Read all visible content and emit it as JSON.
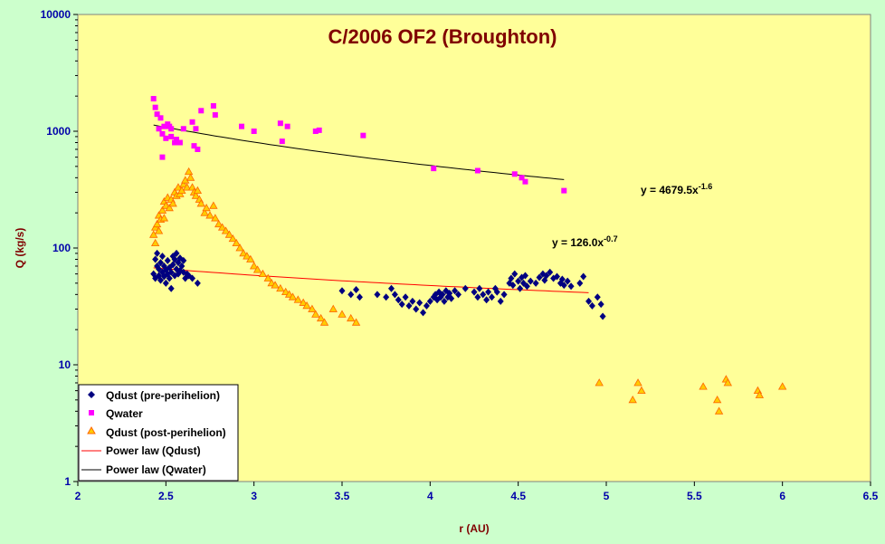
{
  "chart_data": {
    "type": "scatter",
    "title": "C/2006 OF2 (Broughton)",
    "xlabel": "r (AU)",
    "ylabel": "Q (kg/s)",
    "xlim": [
      2,
      6.5
    ],
    "ylim": [
      1,
      10000
    ],
    "yscale": "log",
    "x_ticks": [
      "2",
      "2.5",
      "3",
      "3.5",
      "4",
      "4.5",
      "5",
      "5.5",
      "6",
      "6.5"
    ],
    "y_ticks": [
      "1",
      "10",
      "100",
      "1000",
      "10000"
    ],
    "grid": false,
    "legend_position": "bottom-left",
    "colors": {
      "plot_bg": "#ffff99",
      "chart_bg": "#ccffcc",
      "qdust_pre": "#000080",
      "qwater": "#ff00ff",
      "qdust_post_fill": "#ffcc00",
      "qdust_post_edge": "#ff6600",
      "power_qdust": "#ff0000",
      "power_qwater": "#000000"
    },
    "annotations": [
      {
        "id": "eq_water",
        "prefix": "y = 4679.5x",
        "exponent": "-1.6",
        "x": 4.8,
        "y": 300
      },
      {
        "id": "eq_dust",
        "prefix": "y = 126.0x",
        "exponent": "-0.7",
        "x": 4.75,
        "y": 68
      }
    ],
    "series": [
      {
        "name": "Qdust (pre-perihelion)",
        "marker": "diamond",
        "points": [
          [
            2.43,
            60
          ],
          [
            2.44,
            80
          ],
          [
            2.44,
            55
          ],
          [
            2.45,
            70
          ],
          [
            2.45,
            90
          ],
          [
            2.46,
            58
          ],
          [
            2.46,
            66
          ],
          [
            2.47,
            75
          ],
          [
            2.47,
            53
          ],
          [
            2.48,
            62
          ],
          [
            2.48,
            85
          ],
          [
            2.49,
            57
          ],
          [
            2.49,
            70
          ],
          [
            2.5,
            50
          ],
          [
            2.5,
            65
          ],
          [
            2.51,
            60
          ],
          [
            2.51,
            78
          ],
          [
            2.52,
            55
          ],
          [
            2.52,
            68
          ],
          [
            2.53,
            45
          ],
          [
            2.53,
            62
          ],
          [
            2.54,
            85
          ],
          [
            2.54,
            72
          ],
          [
            2.55,
            80
          ],
          [
            2.55,
            58
          ],
          [
            2.56,
            66
          ],
          [
            2.56,
            90
          ],
          [
            2.57,
            75
          ],
          [
            2.57,
            60
          ],
          [
            2.58,
            82
          ],
          [
            2.58,
            64
          ],
          [
            2.59,
            70
          ],
          [
            2.6,
            78
          ],
          [
            2.6,
            62
          ],
          [
            2.61,
            55
          ],
          [
            2.62,
            60
          ],
          [
            2.63,
            58
          ],
          [
            2.65,
            55
          ],
          [
            2.68,
            50
          ],
          [
            3.5,
            43
          ],
          [
            3.55,
            40
          ],
          [
            3.58,
            44
          ],
          [
            3.6,
            38
          ],
          [
            3.7,
            40
          ],
          [
            3.75,
            38
          ],
          [
            3.78,
            45
          ],
          [
            3.8,
            40
          ],
          [
            3.82,
            36
          ],
          [
            3.84,
            33
          ],
          [
            3.86,
            38
          ],
          [
            3.88,
            32
          ],
          [
            3.9,
            35
          ],
          [
            3.92,
            30
          ],
          [
            3.94,
            34
          ],
          [
            3.96,
            28
          ],
          [
            3.98,
            32
          ],
          [
            4.0,
            35
          ],
          [
            4.02,
            38
          ],
          [
            4.03,
            40
          ],
          [
            4.04,
            36
          ],
          [
            4.05,
            42
          ],
          [
            4.06,
            38
          ],
          [
            4.07,
            40
          ],
          [
            4.08,
            35
          ],
          [
            4.09,
            43
          ],
          [
            4.1,
            38
          ],
          [
            4.11,
            41
          ],
          [
            4.12,
            37
          ],
          [
            4.14,
            43
          ],
          [
            4.16,
            40
          ],
          [
            4.2,
            45
          ],
          [
            4.25,
            42
          ],
          [
            4.27,
            38
          ],
          [
            4.28,
            45
          ],
          [
            4.3,
            40
          ],
          [
            4.32,
            36
          ],
          [
            4.33,
            42
          ],
          [
            4.35,
            38
          ],
          [
            4.37,
            45
          ],
          [
            4.38,
            42
          ],
          [
            4.4,
            35
          ],
          [
            4.42,
            40
          ],
          [
            4.45,
            50
          ],
          [
            4.46,
            55
          ],
          [
            4.47,
            48
          ],
          [
            4.48,
            60
          ],
          [
            4.5,
            52
          ],
          [
            4.51,
            45
          ],
          [
            4.52,
            56
          ],
          [
            4.53,
            50
          ],
          [
            4.54,
            58
          ],
          [
            4.55,
            47
          ],
          [
            4.57,
            52
          ],
          [
            4.6,
            50
          ],
          [
            4.62,
            56
          ],
          [
            4.64,
            60
          ],
          [
            4.65,
            53
          ],
          [
            4.66,
            58
          ],
          [
            4.68,
            62
          ],
          [
            4.7,
            55
          ],
          [
            4.72,
            57
          ],
          [
            4.74,
            50
          ],
          [
            4.75,
            54
          ],
          [
            4.76,
            48
          ],
          [
            4.78,
            52
          ],
          [
            4.8,
            47
          ],
          [
            4.85,
            50
          ],
          [
            4.87,
            57
          ],
          [
            4.9,
            35
          ],
          [
            4.92,
            32
          ],
          [
            4.95,
            38
          ],
          [
            4.97,
            33
          ],
          [
            4.98,
            26
          ]
        ]
      },
      {
        "name": "Qwater",
        "marker": "square",
        "points": [
          [
            2.43,
            1900
          ],
          [
            2.44,
            1600
          ],
          [
            2.45,
            1400
          ],
          [
            2.46,
            1050
          ],
          [
            2.47,
            1300
          ],
          [
            2.48,
            950
          ],
          [
            2.49,
            1100
          ],
          [
            2.48,
            600
          ],
          [
            2.5,
            870
          ],
          [
            2.51,
            1150
          ],
          [
            2.52,
            1100
          ],
          [
            2.53,
            1050
          ],
          [
            2.53,
            900
          ],
          [
            2.55,
            800
          ],
          [
            2.56,
            850
          ],
          [
            2.58,
            800
          ],
          [
            2.6,
            1050
          ],
          [
            2.65,
            1200
          ],
          [
            2.66,
            750
          ],
          [
            2.67,
            1050
          ],
          [
            2.68,
            700
          ],
          [
            2.7,
            1500
          ],
          [
            2.77,
            1650
          ],
          [
            2.78,
            1380
          ],
          [
            2.93,
            1100
          ],
          [
            3.0,
            1000
          ],
          [
            3.15,
            1170
          ],
          [
            3.16,
            820
          ],
          [
            3.19,
            1100
          ],
          [
            3.35,
            1000
          ],
          [
            3.37,
            1020
          ],
          [
            3.62,
            920
          ],
          [
            4.02,
            480
          ],
          [
            4.27,
            460
          ],
          [
            4.48,
            430
          ],
          [
            4.52,
            400
          ],
          [
            4.54,
            370
          ],
          [
            4.76,
            310
          ]
        ]
      },
      {
        "name": "Qdust (post-perihelion)",
        "marker": "triangle",
        "points": [
          [
            2.43,
            130
          ],
          [
            2.44,
            150
          ],
          [
            2.44,
            110
          ],
          [
            2.45,
            160
          ],
          [
            2.46,
            190
          ],
          [
            2.46,
            140
          ],
          [
            2.47,
            175
          ],
          [
            2.48,
            210
          ],
          [
            2.49,
            250
          ],
          [
            2.49,
            180
          ],
          [
            2.5,
            230
          ],
          [
            2.51,
            270
          ],
          [
            2.52,
            220
          ],
          [
            2.53,
            260
          ],
          [
            2.54,
            240
          ],
          [
            2.55,
            300
          ],
          [
            2.56,
            280
          ],
          [
            2.57,
            330
          ],
          [
            2.58,
            290
          ],
          [
            2.59,
            310
          ],
          [
            2.6,
            350
          ],
          [
            2.61,
            380
          ],
          [
            2.62,
            330
          ],
          [
            2.63,
            450
          ],
          [
            2.64,
            400
          ],
          [
            2.65,
            330
          ],
          [
            2.66,
            300
          ],
          [
            2.67,
            280
          ],
          [
            2.68,
            310
          ],
          [
            2.69,
            260
          ],
          [
            2.7,
            240
          ],
          [
            2.72,
            200
          ],
          [
            2.73,
            220
          ],
          [
            2.75,
            190
          ],
          [
            2.77,
            230
          ],
          [
            2.78,
            180
          ],
          [
            2.8,
            160
          ],
          [
            2.82,
            150
          ],
          [
            2.84,
            140
          ],
          [
            2.86,
            130
          ],
          [
            2.88,
            120
          ],
          [
            2.9,
            110
          ],
          [
            2.92,
            100
          ],
          [
            2.94,
            90
          ],
          [
            2.96,
            85
          ],
          [
            2.98,
            80
          ],
          [
            3.0,
            70
          ],
          [
            3.02,
            65
          ],
          [
            3.05,
            60
          ],
          [
            3.08,
            55
          ],
          [
            3.1,
            50
          ],
          [
            3.12,
            48
          ],
          [
            3.15,
            45
          ],
          [
            3.18,
            42
          ],
          [
            3.2,
            40
          ],
          [
            3.22,
            38
          ],
          [
            3.25,
            36
          ],
          [
            3.28,
            34
          ],
          [
            3.3,
            32
          ],
          [
            3.33,
            30
          ],
          [
            3.35,
            27
          ],
          [
            3.38,
            25
          ],
          [
            3.4,
            23
          ],
          [
            3.45,
            30
          ],
          [
            3.5,
            27
          ],
          [
            3.55,
            25
          ],
          [
            3.58,
            23
          ],
          [
            4.96,
            7
          ],
          [
            5.15,
            5
          ],
          [
            5.18,
            7
          ],
          [
            5.2,
            6
          ],
          [
            5.55,
            6.5
          ],
          [
            5.63,
            5
          ],
          [
            5.64,
            4
          ],
          [
            5.68,
            7.5
          ],
          [
            5.69,
            7
          ],
          [
            5.86,
            6
          ],
          [
            5.87,
            5.5
          ],
          [
            6.0,
            6.5
          ]
        ]
      },
      {
        "name": "Power law (Qdust)",
        "marker": "line",
        "range": [
          2.43,
          4.9
        ],
        "coef": 126.0,
        "exp": -0.7
      },
      {
        "name": "Power law (Qwater)",
        "marker": "line",
        "range": [
          2.43,
          4.76
        ],
        "coef": 4679.5,
        "exp": -1.6
      }
    ]
  }
}
